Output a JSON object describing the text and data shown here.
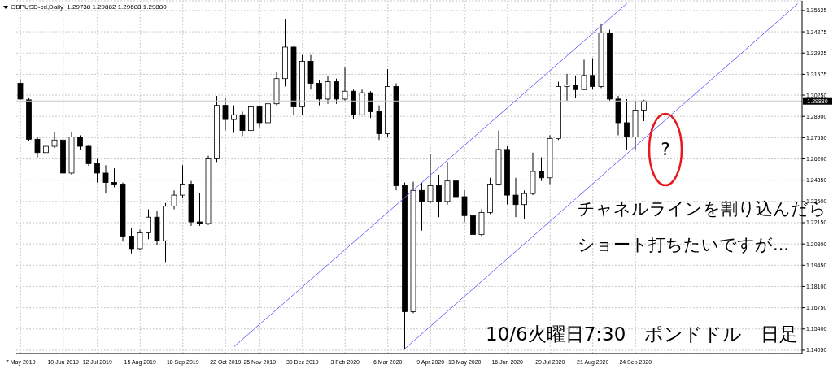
{
  "chart_data": {
    "type": "candlestick",
    "title": "GBPUSD-cd,Daily  1.29738 1.29882 1.29688 1.29880",
    "categories": [
      "7 May 2019",
      null,
      null,
      null,
      null,
      "10 Jun 2019",
      null,
      null,
      null,
      "12 Jul 2019",
      null,
      null,
      null,
      null,
      "15 Aug 2019",
      null,
      null,
      null,
      null,
      "18 Sep 2019",
      null,
      null,
      null,
      null,
      "22 Oct 2019",
      null,
      null,
      null,
      "25 Nov 2019",
      null,
      null,
      null,
      null,
      "30 Dec 2019",
      null,
      null,
      null,
      null,
      "3 Feb 2020",
      null,
      null,
      null,
      null,
      "6 Mar 2020",
      null,
      null,
      null,
      null,
      "9 Apr 2020",
      null,
      null,
      null,
      "13 May 2020",
      null,
      null,
      null,
      null,
      "16 Jun 2020",
      null,
      null,
      null,
      null,
      "20 Jul 2020",
      null,
      null,
      null,
      null,
      "21 Aug 2020",
      null,
      null,
      null,
      null,
      "24 Sep 2020",
      null,
      null,
      null,
      null,
      null,
      null,
      null,
      null,
      null,
      null,
      null,
      null,
      null,
      null,
      null,
      null,
      null,
      null,
      null
    ],
    "ohlc": [
      [
        1.31,
        1.3125,
        1.2995,
        1.3
      ],
      [
        1.2995,
        1.301,
        1.2735,
        1.2745
      ],
      [
        1.2745,
        1.276,
        1.263,
        1.266
      ],
      [
        1.266,
        1.274,
        1.262,
        1.27
      ],
      [
        1.27,
        1.279,
        1.269,
        1.274
      ],
      [
        1.274,
        1.2765,
        1.2505,
        1.253
      ],
      [
        1.253,
        1.279,
        1.252,
        1.276
      ],
      [
        1.276,
        1.277,
        1.268,
        1.27
      ],
      [
        1.27,
        1.271,
        1.2575,
        1.259
      ],
      [
        1.259,
        1.262,
        1.247,
        1.253
      ],
      [
        1.253,
        1.258,
        1.24,
        1.247
      ],
      [
        1.247,
        1.256,
        1.244,
        1.246
      ],
      [
        1.246,
        1.247,
        1.2095,
        1.213
      ],
      [
        1.213,
        1.218,
        1.202,
        1.205
      ],
      [
        1.205,
        1.217,
        1.2045,
        1.215
      ],
      [
        1.215,
        1.23,
        1.211,
        1.225
      ],
      [
        1.225,
        1.229,
        1.207,
        1.21
      ],
      [
        1.21,
        1.234,
        1.1965,
        1.232
      ],
      [
        1.232,
        1.242,
        1.23,
        1.239
      ],
      [
        1.239,
        1.258,
        1.237,
        1.246
      ],
      [
        1.246,
        1.248,
        1.2195,
        1.222
      ],
      [
        1.222,
        1.2405,
        1.2195,
        1.221
      ],
      [
        1.221,
        1.264,
        1.22,
        1.262
      ],
      [
        1.262,
        1.302,
        1.26,
        1.296
      ],
      [
        1.296,
        1.301,
        1.28,
        1.287
      ],
      [
        1.287,
        1.296,
        1.2785,
        1.29
      ],
      [
        1.29,
        1.292,
        1.2765,
        1.28
      ],
      [
        1.28,
        1.298,
        1.279,
        1.295
      ],
      [
        1.295,
        1.296,
        1.282,
        1.285
      ],
      [
        1.285,
        1.3,
        1.282,
        1.297
      ],
      [
        1.297,
        1.317,
        1.296,
        1.313
      ],
      [
        1.313,
        1.351,
        1.308,
        1.333
      ],
      [
        1.333,
        1.334,
        1.29,
        1.295
      ],
      [
        1.295,
        1.328,
        1.29,
        1.324
      ],
      [
        1.324,
        1.328,
        1.306,
        1.31
      ],
      [
        1.31,
        1.312,
        1.296,
        1.3
      ],
      [
        1.3,
        1.315,
        1.297,
        1.311
      ],
      [
        1.311,
        1.313,
        1.297,
        1.3
      ],
      [
        1.3,
        1.32,
        1.299,
        1.305
      ],
      [
        1.305,
        1.306,
        1.287,
        1.29
      ],
      [
        1.29,
        1.306,
        1.29,
        1.304
      ],
      [
        1.304,
        1.305,
        1.288,
        1.292
      ],
      [
        1.292,
        1.296,
        1.274,
        1.278
      ],
      [
        1.278,
        1.319,
        1.276,
        1.308
      ],
      [
        1.308,
        1.31,
        1.242,
        1.245
      ],
      [
        1.245,
        1.247,
        1.1412,
        1.165
      ],
      [
        1.165,
        1.2475,
        1.164,
        1.242
      ],
      [
        1.242,
        1.247,
        1.2165,
        1.235
      ],
      [
        1.235,
        1.265,
        1.234,
        1.245
      ],
      [
        1.245,
        1.252,
        1.225,
        1.235
      ],
      [
        1.235,
        1.26,
        1.233,
        1.248
      ],
      [
        1.248,
        1.26,
        1.23,
        1.238
      ],
      [
        1.238,
        1.242,
        1.222,
        1.226
      ],
      [
        1.226,
        1.229,
        1.208,
        1.214
      ],
      [
        1.214,
        1.23,
        1.213,
        1.228
      ],
      [
        1.228,
        1.25,
        1.227,
        1.246
      ],
      [
        1.246,
        1.28,
        1.245,
        1.268
      ],
      [
        1.268,
        1.27,
        1.233,
        1.239
      ],
      [
        1.239,
        1.25,
        1.225,
        1.233
      ],
      [
        1.233,
        1.242,
        1.224,
        1.24
      ],
      [
        1.24,
        1.266,
        1.239,
        1.254
      ],
      [
        1.254,
        1.263,
        1.248,
        1.25
      ],
      [
        1.25,
        1.277,
        1.246,
        1.275
      ],
      [
        1.275,
        1.311,
        1.274,
        1.308
      ],
      [
        1.308,
        1.316,
        1.299,
        1.309
      ],
      [
        1.309,
        1.315,
        1.301,
        1.306
      ],
      [
        1.306,
        1.325,
        1.306,
        1.315
      ],
      [
        1.315,
        1.326,
        1.306,
        1.308
      ],
      [
        1.308,
        1.348,
        1.307,
        1.342
      ],
      [
        1.342,
        1.344,
        1.299,
        1.3
      ],
      [
        1.3,
        1.302,
        1.277,
        1.285
      ],
      [
        1.285,
        1.3,
        1.268,
        1.276
      ],
      [
        1.276,
        1.299,
        1.268,
        1.293
      ],
      [
        1.293,
        1.2995,
        1.286,
        1.2988
      ],
      null,
      null,
      null,
      null,
      null,
      null,
      null,
      null,
      null,
      null,
      null,
      null,
      null,
      null,
      null,
      null,
      null,
      null
    ],
    "color": "#000000",
    "series": [
      {
        "type": "line",
        "color": "#6b6bff",
        "values": [
          null,
          null,
          null,
          null,
          null,
          null,
          null,
          null,
          null,
          null,
          null,
          null,
          null,
          null,
          null,
          null,
          null,
          null,
          null,
          null,
          null,
          null,
          null,
          null,
          null,
          1.1428,
          null,
          null,
          null,
          null,
          null,
          null,
          null,
          null,
          null,
          null,
          null,
          null,
          null,
          null,
          null,
          null,
          null,
          null,
          null,
          null,
          null,
          null,
          null,
          null,
          null,
          null,
          null,
          null,
          null,
          null,
          null,
          null,
          null,
          null,
          null,
          null,
          null,
          null,
          null,
          null,
          null,
          null,
          null,
          null,
          null,
          1.3608,
          null,
          null,
          null,
          null,
          null,
          null,
          null,
          null,
          null,
          null,
          null,
          null,
          null,
          null,
          null,
          null,
          null,
          null,
          null,
          null
        ]
      },
      {
        "type": "line",
        "color": "#6b6bff",
        "values": [
          null,
          null,
          null,
          null,
          null,
          null,
          null,
          null,
          null,
          null,
          null,
          null,
          null,
          null,
          null,
          null,
          null,
          null,
          null,
          null,
          null,
          null,
          null,
          null,
          null,
          null,
          null,
          null,
          null,
          null,
          null,
          null,
          null,
          null,
          null,
          null,
          null,
          null,
          null,
          null,
          null,
          null,
          null,
          null,
          null,
          1.1415,
          null,
          null,
          null,
          null,
          null,
          null,
          null,
          null,
          null,
          null,
          null,
          null,
          null,
          null,
          null,
          null,
          null,
          null,
          null,
          null,
          null,
          null,
          null,
          null,
          null,
          null,
          null,
          null,
          null,
          null,
          null,
          null,
          null,
          null,
          null,
          null,
          null,
          null,
          null,
          null,
          null,
          null,
          null,
          null,
          null,
          1.3606
        ]
      }
    ],
    "ylim": [
      1.1384,
      1.3624
    ],
    "yticks": [
      {
        "value": 1.1405,
        "label": "1.14050"
      },
      {
        "value": 1.154,
        "label": "1.15400"
      },
      {
        "value": 1.1675,
        "label": "1.16750"
      },
      {
        "value": 1.181,
        "label": "1.18100"
      },
      {
        "value": 1.1945,
        "label": "1.19450"
      },
      {
        "value": 1.208,
        "label": "1.20800"
      },
      {
        "value": 1.2215,
        "label": "1.22150"
      },
      {
        "value": 1.235,
        "label": "1.23500"
      },
      {
        "value": 1.2485,
        "label": "1.24850"
      },
      {
        "value": 1.262,
        "label": "1.26200"
      },
      {
        "value": 1.2755,
        "label": "1.27550"
      },
      {
        "value": 1.289,
        "label": "1.28900"
      },
      {
        "value": 1.3025,
        "label": "1.30250"
      },
      {
        "value": 1.31575,
        "label": "1.31575"
      },
      {
        "value": 1.32925,
        "label": "1.32925"
      },
      {
        "value": 1.34275,
        "label": "1.34275"
      },
      {
        "value": 1.35625,
        "label": "1.35625"
      }
    ],
    "ref_lines": [
      {
        "axis": "y",
        "value": 1.2988,
        "label": "1.29880",
        "color": "#c8c8c8"
      }
    ],
    "grid": true,
    "annotations": [
      "?",
      "チャネルラインを割り込んだら",
      "ショート打ちたいですが...",
      "10/6火曜日7:30　ポンドドル　日足"
    ]
  }
}
